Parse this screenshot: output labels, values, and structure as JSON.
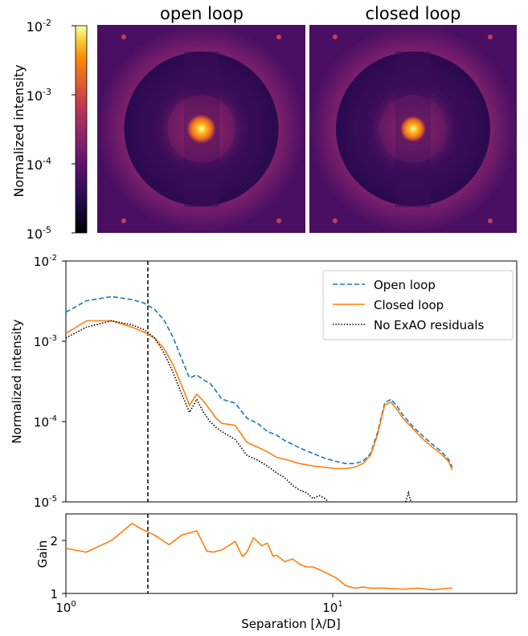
{
  "images": {
    "left_title": "open loop",
    "right_title": "closed loop",
    "colorbar": {
      "label": "Normalized intensity",
      "scale": "log",
      "range": [
        1e-05,
        0.01
      ],
      "colormap": "inferno",
      "tick_bases": [
        "10",
        "10",
        "10",
        "10"
      ],
      "tick_exps": [
        "-2",
        "-3",
        "-4",
        "-5"
      ]
    }
  },
  "chart_data": [
    {
      "type": "line",
      "xscale": "log",
      "yscale": "log",
      "xlim": [
        1,
        55
      ],
      "ylim": [
        1e-05,
        0.01
      ],
      "ylabel": "Normalized intensity",
      "xlabel": "",
      "y_tick_bases": [
        "10",
        "10",
        "10",
        "10"
      ],
      "y_tick_exps": [
        "-2",
        "-3",
        "-4",
        "-5"
      ],
      "vline_x": 2,
      "legend_position": "top-right",
      "legend": [
        "Open loop",
        "Closed loop",
        "No ExAO residuals"
      ],
      "colors": {
        "open": "#1f77b4",
        "closed": "#ff7f0e",
        "noexao": "#000000"
      },
      "series": [
        {
          "name": "Open loop",
          "style": "dashed",
          "x": [
            1.0,
            1.2,
            1.5,
            1.8,
            2.0,
            2.2,
            2.4,
            2.6,
            2.8,
            3.0,
            3.2,
            3.4,
            3.6,
            3.8,
            4.0,
            4.5,
            5.0,
            5.5,
            6.0,
            6.5,
            7.0,
            8.0,
            9.0,
            10.0,
            11.0,
            12.0,
            13.0,
            14.0,
            15.0,
            16.0,
            17.0,
            18.0,
            19.0,
            20.0,
            22.0,
            24.0,
            26.0,
            28.0,
            30.0,
            31.0
          ],
          "y": [
            0.0023,
            0.0032,
            0.0036,
            0.0033,
            0.003,
            0.0025,
            0.0018,
            0.0011,
            0.0006,
            0.00035,
            0.00038,
            0.00033,
            0.0003,
            0.00024,
            0.00019,
            0.00017,
            0.00011,
            9.5e-05,
            7.5e-05,
            6.8e-05,
            5.8e-05,
            4.7e-05,
            4e-05,
            3.5e-05,
            3.2e-05,
            3e-05,
            3e-05,
            3.2e-05,
            4e-05,
            7.5e-05,
            0.00017,
            0.00019,
            0.000155,
            0.00012,
            8.5e-05,
            6.5e-05,
            5.2e-05,
            4.3e-05,
            3.4e-05,
            2.7e-05
          ]
        },
        {
          "name": "Closed loop",
          "style": "solid",
          "x": [
            1.0,
            1.2,
            1.5,
            1.8,
            2.0,
            2.2,
            2.4,
            2.6,
            2.8,
            3.0,
            3.2,
            3.4,
            3.6,
            3.8,
            4.0,
            4.5,
            5.0,
            5.5,
            6.0,
            6.5,
            7.0,
            8.0,
            9.0,
            10.0,
            11.0,
            12.0,
            13.0,
            14.0,
            15.0,
            16.0,
            17.0,
            18.0,
            19.0,
            20.0,
            22.0,
            24.0,
            26.0,
            28.0,
            30.0,
            31.0
          ],
          "y": [
            0.00125,
            0.0018,
            0.0018,
            0.0015,
            0.0013,
            0.0011,
            0.0008,
            0.0005,
            0.00028,
            0.00016,
            0.00022,
            0.00018,
            0.00014,
            0.00011,
            9.5e-05,
            9e-05,
            5.5e-05,
            4.8e-05,
            4.2e-05,
            3.6e-05,
            3.4e-05,
            3e-05,
            2.8e-05,
            2.7e-05,
            2.6e-05,
            2.6e-05,
            2.7e-05,
            3e-05,
            3.8e-05,
            7e-05,
            0.00016,
            0.000175,
            0.00014,
            0.00011,
            8e-05,
            6e-05,
            4.8e-05,
            4e-05,
            3.2e-05,
            2.5e-05
          ]
        },
        {
          "name": "No ExAO residuals",
          "style": "dotted",
          "x": [
            1.0,
            1.2,
            1.5,
            1.8,
            2.0,
            2.2,
            2.4,
            2.6,
            2.8,
            3.0,
            3.2,
            3.4,
            3.6,
            3.8,
            4.0,
            4.5,
            5.0,
            5.5,
            6.0,
            6.5,
            7.0,
            7.5,
            8.0,
            8.5,
            9.0,
            9.5,
            10.0,
            10.3
          ],
          "y": [
            0.0011,
            0.0015,
            0.0018,
            0.0016,
            0.0014,
            0.0011,
            0.0007,
            0.0004,
            0.00022,
            0.00013,
            0.00019,
            0.00013,
            0.0001,
            8.5e-05,
            7.5e-05,
            6e-05,
            3.8e-05,
            3.3e-05,
            2.8e-05,
            2.3e-05,
            2e-05,
            1.6e-05,
            1.4e-05,
            1.3e-05,
            1.1e-05,
            1.2e-05,
            1.1e-05,
            1e-05
          ]
        },
        {
          "name": "",
          "style": "dotted",
          "x": [
            20.5,
            21.0,
            21.5
          ],
          "y": [
            1e-05,
            1.3e-05,
            1e-05
          ]
        }
      ]
    },
    {
      "type": "line",
      "xscale": "log",
      "yscale": "linear",
      "xlim": [
        1,
        55
      ],
      "ylim": [
        1,
        2.5
      ],
      "ylabel": "Gain",
      "xlabel": "Separation [λ/D]",
      "x_ticks": [
        {
          "base": "10",
          "exp": "0"
        },
        {
          "base": "10",
          "exp": "1"
        }
      ],
      "y_ticks": [
        "2",
        "1"
      ],
      "vline_x": 2,
      "series": [
        {
          "name": "",
          "style": "solid",
          "x": [
            1.0,
            1.2,
            1.5,
            1.8,
            1.95,
            2.2,
            2.5,
            2.8,
            3.2,
            3.5,
            3.7,
            4.0,
            4.5,
            4.8,
            5.0,
            5.3,
            5.7,
            6.0,
            6.3,
            6.5,
            7.0,
            7.5,
            8.0,
            8.5,
            9.0,
            10.0,
            11.0,
            12.0,
            13.0,
            14.0,
            15.0,
            17.0,
            20.0,
            23.0,
            26.0,
            30.0,
            31.0
          ],
          "y": [
            1.85,
            1.78,
            2.0,
            2.32,
            2.22,
            2.1,
            1.92,
            2.1,
            2.18,
            1.8,
            1.78,
            1.82,
            1.98,
            1.7,
            1.78,
            2.05,
            1.9,
            1.95,
            1.7,
            1.72,
            1.6,
            1.65,
            1.55,
            1.5,
            1.5,
            1.4,
            1.3,
            1.15,
            1.1,
            1.12,
            1.1,
            1.1,
            1.08,
            1.1,
            1.07,
            1.1,
            1.1
          ]
        }
      ]
    }
  ]
}
